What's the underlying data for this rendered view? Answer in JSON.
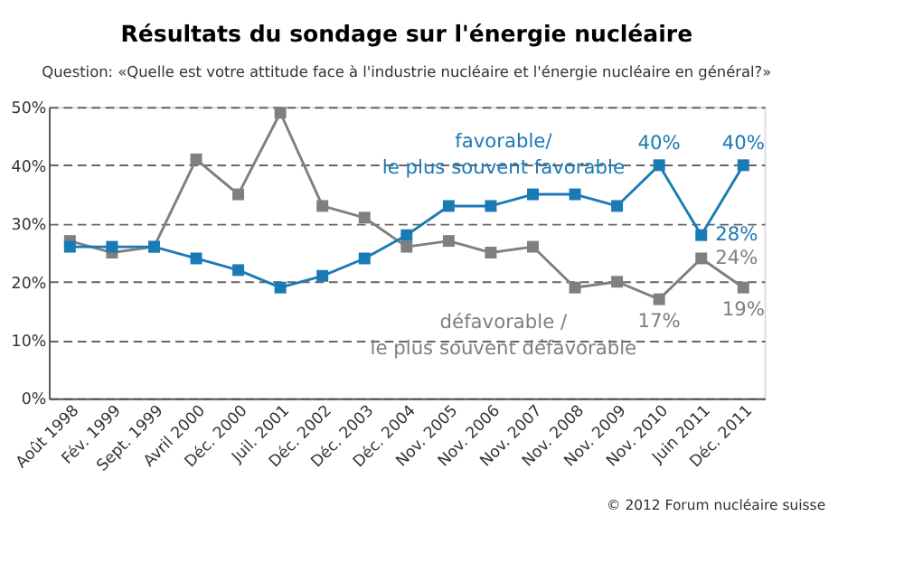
{
  "chart_data": {
    "type": "line",
    "title": "Résultats du sondage sur l'énergie nucléaire",
    "subtitle": "Question: «Quelle est votre attitude face à l'industrie nucléaire et l'énergie nucléaire en général?»",
    "categories": [
      "Août 1998",
      "Fév. 1999",
      "Sept. 1999",
      "Avril 2000",
      "Déc. 2000",
      "Juil. 2001",
      "Déc. 2002",
      "Déc. 2003",
      "Déc. 2004",
      "Nov. 2005",
      "Nov. 2006",
      "Nov. 2007",
      "Nov. 2008",
      "Nov. 2009",
      "Nov. 2010",
      "Juin 2011",
      "Déc. 2011"
    ],
    "series": [
      {
        "name": "favorable/\nle plus souvent favorable",
        "color": "#1a7ab5",
        "values": [
          26,
          26,
          26,
          24,
          22,
          19,
          21,
          24,
          28,
          33,
          33,
          35,
          35,
          33,
          40,
          28,
          40
        ],
        "value_labels": [
          null,
          null,
          null,
          null,
          null,
          null,
          null,
          null,
          null,
          null,
          null,
          null,
          null,
          null,
          "40%",
          "28%",
          "40%"
        ]
      },
      {
        "name": "défavorable /\nle plus souvent défavorable",
        "color": "#7f7f7f",
        "values": [
          27,
          25,
          26,
          41,
          35,
          49,
          33,
          31,
          26,
          27,
          25,
          26,
          19,
          20,
          17,
          24,
          19
        ],
        "value_labels": [
          null,
          null,
          null,
          null,
          null,
          null,
          null,
          null,
          null,
          null,
          null,
          null,
          null,
          null,
          "17%",
          "24%",
          "19%"
        ]
      }
    ],
    "ylim": [
      0,
      50
    ],
    "yticks": [
      {
        "value": 0,
        "label": "0%"
      },
      {
        "value": 10,
        "label": "10%"
      },
      {
        "value": 20,
        "label": "20%"
      },
      {
        "value": 30,
        "label": "30%"
      },
      {
        "value": 40,
        "label": "40%"
      },
      {
        "value": 50,
        "label": "50%"
      }
    ],
    "grid": "y",
    "marker": "square",
    "line_style": "solid",
    "annotations": [
      "© 2012 Forum nucléaire suisse"
    ]
  }
}
